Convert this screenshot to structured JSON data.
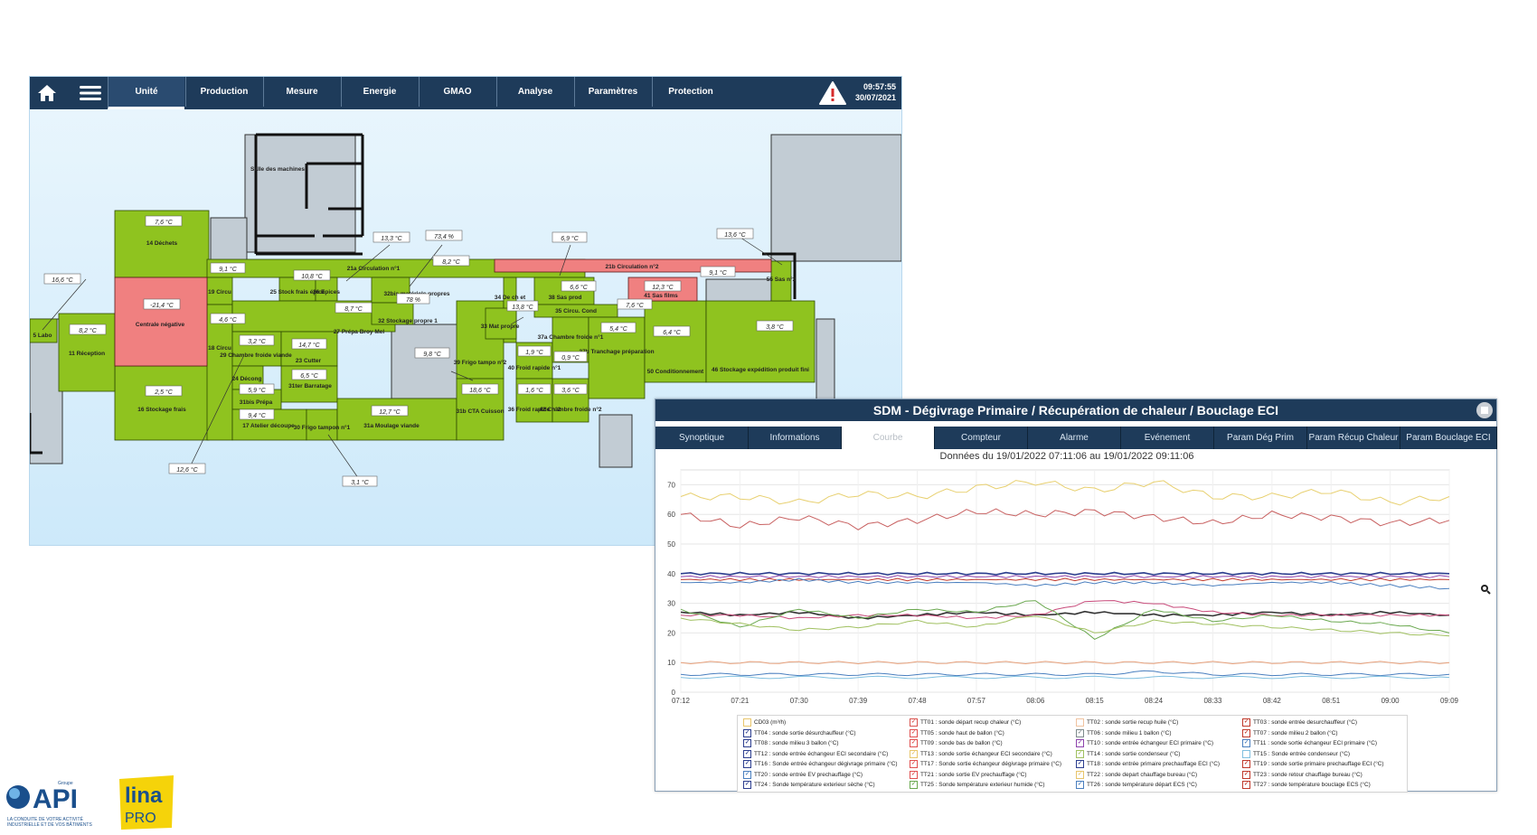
{
  "nav": {
    "tabs": [
      {
        "label": "Unité",
        "active": true
      },
      {
        "label": "Production"
      },
      {
        "label": "Mesure"
      },
      {
        "label": "Energie"
      },
      {
        "label": "GMAO"
      },
      {
        "label": "Analyse"
      },
      {
        "label": "Paramètres"
      },
      {
        "label": "Protection"
      }
    ],
    "time": "09:57:55",
    "date": "30/07/2021",
    "colors": {
      "bar": "#1e3b5a",
      "room_ok": "#8fc31f",
      "room_alarm": "#f08080",
      "room_neutral": "#c2ccd4"
    }
  },
  "floorplan": {
    "rooms": [
      {
        "id": "r14",
        "label": "14 Déchets",
        "state": "ok"
      },
      {
        "id": "rcn",
        "label": "Centrale négative",
        "state": "alarm"
      },
      {
        "id": "r16",
        "label": "16 Stockage frais",
        "state": "ok"
      },
      {
        "id": "r11",
        "label": "11 Réception",
        "state": "ok"
      },
      {
        "id": "r5",
        "label": "5 Labo",
        "state": "ok"
      },
      {
        "id": "rsm",
        "label": "Salle des machines",
        "state": "neutral"
      },
      {
        "id": "r19",
        "label": "19 Circu",
        "state": "ok"
      },
      {
        "id": "r18",
        "label": "18 Circu",
        "state": "ok"
      },
      {
        "id": "r21a",
        "label": "21a Circulation n°1",
        "state": "ok"
      },
      {
        "id": "r25",
        "label": "25 Stock frais épice",
        "state": "ok"
      },
      {
        "id": "r26",
        "label": "26 Epices",
        "state": "ok"
      },
      {
        "id": "r27",
        "label": "27 Prépa Broy Mel",
        "state": "ok"
      },
      {
        "id": "r32b",
        "label": "32bis matériels propres",
        "state": "ok"
      },
      {
        "id": "r32",
        "label": "32 Stockage propre 1",
        "state": "ok"
      },
      {
        "id": "r29",
        "label": "29 Chambre froide viande",
        "state": "ok"
      },
      {
        "id": "r23",
        "label": "23 Cutter",
        "state": "ok"
      },
      {
        "id": "r24",
        "label": "24 Décong",
        "state": "ok"
      },
      {
        "id": "r31t",
        "label": "31ter Barratage",
        "state": "ok"
      },
      {
        "id": "r31b",
        "label": "31bis Prépa",
        "state": "ok"
      },
      {
        "id": "r17",
        "label": "17 Atelier découpe",
        "state": "ok"
      },
      {
        "id": "r30",
        "label": "30 Frigo tampon n°1",
        "state": "ok"
      },
      {
        "id": "r31a",
        "label": "31a Moulage viande",
        "state": "ok"
      },
      {
        "id": "r39",
        "label": "39 Frigo tampo n°2",
        "state": "ok"
      },
      {
        "id": "r31c",
        "label": "31b CTA Cuisson",
        "state": "ok"
      },
      {
        "id": "r34",
        "label": "34 De ch et",
        "state": "ok"
      },
      {
        "id": "r33",
        "label": "33 Mat propre",
        "state": "ok"
      },
      {
        "id": "r40",
        "label": "40 Froid rapide n°1",
        "state": "ok"
      },
      {
        "id": "r36",
        "label": "36 Froid rapide n°2",
        "state": "ok"
      },
      {
        "id": "r42",
        "label": "42 Chambre froide n°2",
        "state": "ok"
      },
      {
        "id": "r21b",
        "label": "21b Circulation n°2",
        "state": "alarm"
      },
      {
        "id": "r38",
        "label": "38 Sas prod",
        "state": "ok"
      },
      {
        "id": "r35",
        "label": "35 Circu. Cond",
        "state": "ok"
      },
      {
        "id": "r37a",
        "label": "37a Chambre froide n°1",
        "state": "ok"
      },
      {
        "id": "r37b",
        "label": "37b Tranchage préparation",
        "state": "ok"
      },
      {
        "id": "r41",
        "label": "41 Sas films",
        "state": "alarm"
      },
      {
        "id": "r50",
        "label": "50 Conditionnement",
        "state": "ok"
      },
      {
        "id": "r46",
        "label": "46 Stockage expédition produit fini",
        "state": "ok"
      },
      {
        "id": "r55",
        "label": "55 Sas n°2",
        "state": "ok"
      }
    ],
    "readings": [
      "7,6 °C",
      "-21,4 °C",
      "2,5 °C",
      "8,2 °C",
      "16,6 °C",
      "12,6 °C",
      "9,1 °C",
      "4,6 °C",
      "13,3 °C",
      "73,4 %",
      "10,8 °C",
      "8,2 °C",
      "8,7 °C",
      "78 %",
      "3,2 °C",
      "14,7 °C",
      "5,9 °C",
      "6,5 °C",
      "9,4 °C",
      "12,7 °C",
      "3,1 °C",
      "9,8 °C",
      "18,6 °C",
      "6,9 °C",
      "13,8 °C",
      "1,9 °C",
      "0,9 °C",
      "1,6 °C",
      "3,6 °C",
      "6,6 °C",
      "7,6 °C",
      "5,4 °C",
      "12,3 °C",
      "9,1 °C",
      "13,6 °C",
      "6,4 °C",
      "3,8 °C"
    ]
  },
  "panel": {
    "title": "SDM - Dégivrage Primaire / Récupération de chaleur / Bouclage ECI",
    "tabs": [
      {
        "label": "Synoptique"
      },
      {
        "label": "Informations"
      },
      {
        "label": "Courbe",
        "active": true
      },
      {
        "label": "Compteur"
      },
      {
        "label": "Alarme"
      },
      {
        "label": "Evénement"
      },
      {
        "label": "Param Dég Prim"
      },
      {
        "label": "Param Récup Chaleur"
      },
      {
        "label": "Param Bouclage ECI"
      }
    ],
    "subtitle": "Données du 19/01/2022 07:11:06 au 19/01/2022 09:11:06",
    "legend": [
      {
        "label": "CD03 (m³/h)",
        "color": "#e8c56b",
        "checked": false
      },
      {
        "label": "TT01 : sonde départ recup chaleur (°C)",
        "color": "#d9534f",
        "checked": true
      },
      {
        "label": "TT02 : sonde sortie recup huile (°C)",
        "color": "#f0c3a0",
        "checked": false
      },
      {
        "label": "TT03 : sonde entrée desurchauffeur (°C)",
        "color": "#c0392b",
        "checked": true
      },
      {
        "label": "TT04 : sonde sortie désurchauffeur (°C)",
        "color": "#2c3e8f",
        "checked": true
      },
      {
        "label": "TT05 : sonde haut de ballon (°C)",
        "color": "#e05050",
        "checked": true
      },
      {
        "label": "TT06 : sonde milieu 1 ballon (°C)",
        "color": "#7f8c8d",
        "checked": true
      },
      {
        "label": "TT07 : sonde milieu 2 ballon (°C)",
        "color": "#c0392b",
        "checked": true
      },
      {
        "label": "TT08 : sonde milieu 3 ballon (°C)",
        "color": "#2c3e8f",
        "checked": true
      },
      {
        "label": "TT09 : sonde bas de ballon (°C)",
        "color": "#e05050",
        "checked": true
      },
      {
        "label": "TT10 : sonde entrée échangeur ECI primaire (°C)",
        "color": "#8e44ad",
        "checked": true
      },
      {
        "label": "TT11 : sonde sortie échangeur ECI primaire (°C)",
        "color": "#4a7fbf",
        "checked": true
      },
      {
        "label": "TT12 : sonde entrée échangeur ECI secondaire (°C)",
        "color": "#2c3e8f",
        "checked": true
      },
      {
        "label": "TT13 : sonde sortie échangeur ECI secondaire (°C)",
        "color": "#e8c56b",
        "checked": true
      },
      {
        "label": "TT14 : sonde sortie condenseur (°C)",
        "color": "#a0c060",
        "checked": true
      },
      {
        "label": "TT15 : Sonde entrée condenseur (°C)",
        "color": "#7fbfdf",
        "checked": false
      },
      {
        "label": "TT16 : Sonde entrée échangeur dégivrage primaire (°C)",
        "color": "#2c3e8f",
        "checked": true
      },
      {
        "label": "TT17 : Sonde sortie échangeur dégivrage primaire (°C)",
        "color": "#e05050",
        "checked": true
      },
      {
        "label": "TT18 : sonde entrée primaire prechauffage ECI (°C)",
        "color": "#2c3e8f",
        "checked": true
      },
      {
        "label": "TT19 : sonde sortie primaire prechauffage ECI (°C)",
        "color": "#c0392b",
        "checked": true
      },
      {
        "label": "TT20 : sonde entrée EV prechauffage (°C)",
        "color": "#4a7fbf",
        "checked": true
      },
      {
        "label": "TT21 : sonde sortie EV prechauffage (°C)",
        "color": "#e05050",
        "checked": true
      },
      {
        "label": "TT22 : sonde depart chauffage bureau (°C)",
        "color": "#e8c56b",
        "checked": true
      },
      {
        "label": "TT23 : sonde retour chauffage bureau (°C)",
        "color": "#c0392b",
        "checked": true
      },
      {
        "label": "TT24 : Sonde température exterieur sèche (°C)",
        "color": "#2c3e8f",
        "checked": true
      },
      {
        "label": "TT25 : Sonde température exterieur humide (°C)",
        "color": "#6aa84f",
        "checked": true
      },
      {
        "label": "TT26 : sonde température départ ECS (°C)",
        "color": "#4a7fbf",
        "checked": true
      },
      {
        "label": "TT27 : sonde température bouclage ECS (°C)",
        "color": "#c0392b",
        "checked": true
      }
    ]
  },
  "chart_data": {
    "type": "line",
    "title": "Données du 19/01/2022 07:11:06 au 19/01/2022 09:11:06",
    "xlabel": "",
    "ylabel": "",
    "ylim": [
      0,
      75
    ],
    "yticks": [
      0,
      10,
      20,
      30,
      40,
      50,
      60,
      70
    ],
    "categories": [
      "07:12",
      "07:21",
      "07:30",
      "07:39",
      "07:48",
      "07:57",
      "08:06",
      "08:15",
      "08:24",
      "08:33",
      "08:42",
      "08:51",
      "09:00",
      "09:09"
    ],
    "grid": true,
    "series": [
      {
        "color": "#e8d070",
        "values": [
          66,
          66,
          64,
          67,
          66,
          69,
          71,
          68,
          71,
          66,
          66,
          68,
          64,
          66
        ]
      },
      {
        "color": "#c86060",
        "values": [
          60,
          56,
          59,
          56,
          58,
          61,
          60,
          61,
          59,
          57,
          60,
          59,
          57,
          58
        ]
      },
      {
        "color": "#2c3e8f",
        "values": [
          40,
          40,
          40,
          40,
          40,
          40,
          40,
          40,
          40,
          40,
          40,
          40,
          40,
          40
        ]
      },
      {
        "color": "#8e44ad",
        "values": [
          39,
          39,
          39,
          39,
          39,
          39,
          39,
          39,
          39,
          39,
          39,
          39,
          39,
          39
        ]
      },
      {
        "color": "#c0392b",
        "values": [
          38,
          38,
          38,
          38,
          38,
          38,
          38,
          38,
          38,
          38,
          38,
          38,
          38,
          38
        ]
      },
      {
        "color": "#4a7fbf",
        "values": [
          37,
          37,
          38,
          37,
          37,
          37,
          36,
          37,
          37,
          36,
          37,
          37,
          36,
          35
        ]
      },
      {
        "color": "#333333",
        "values": [
          27,
          26,
          27,
          25,
          26,
          27,
          26,
          27,
          26,
          26,
          27,
          26,
          27,
          26
        ]
      },
      {
        "color": "#c84a7a",
        "values": [
          26,
          26,
          25,
          26,
          26,
          25,
          26,
          31,
          30,
          27,
          26,
          26,
          26,
          26
        ]
      },
      {
        "color": "#6aa84f",
        "values": [
          28,
          22,
          28,
          25,
          28,
          27,
          31,
          18,
          28,
          24,
          26,
          24,
          23,
          20
        ]
      },
      {
        "color": "#a0c060",
        "values": [
          25,
          23,
          21,
          22,
          24,
          22,
          26,
          20,
          24,
          23,
          22,
          21,
          20,
          19
        ]
      },
      {
        "color": "#e8a07a",
        "values": [
          10,
          10,
          10,
          10,
          10,
          10,
          10,
          10,
          10,
          10,
          10,
          10,
          10,
          10
        ]
      },
      {
        "color": "#4a7fbf",
        "values": [
          6,
          6,
          6,
          6,
          6,
          6,
          6,
          6,
          7,
          6,
          6,
          6,
          6,
          6
        ]
      },
      {
        "color": "#7fbfdf",
        "values": [
          5,
          5,
          5,
          5,
          5,
          5,
          5,
          5,
          5,
          5,
          5,
          5,
          5,
          5
        ]
      }
    ]
  }
}
